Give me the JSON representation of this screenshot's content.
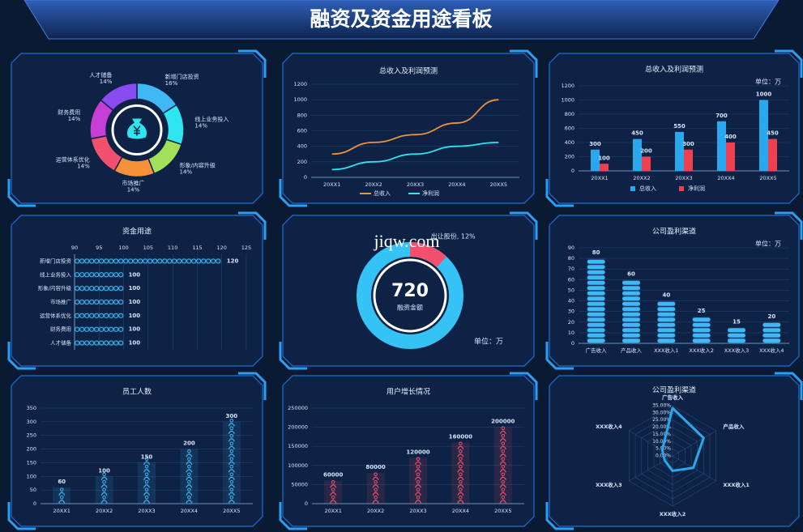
{
  "header": {
    "title": "融资及资金用途看板"
  },
  "chart_data": [
    {
      "type": "pie",
      "categories": [
        "新增门店投资",
        "线上业务投入",
        "形象/内容升级",
        "市场推广",
        "运营体系优化",
        "财务费用",
        "人才储备"
      ],
      "values": [
        16,
        14,
        14,
        14,
        14,
        14,
        14
      ],
      "value_labels": [
        "16%",
        "14%",
        "14%",
        "14%",
        "14%",
        "14%",
        "14%"
      ],
      "colors": [
        "#3fb8f5",
        "#2ee6f0",
        "#a3e05a",
        "#f7923a",
        "#f2506c",
        "#c53fd6",
        "#8a4cf0"
      ]
    },
    {
      "type": "line",
      "title": "总收入及利润预测",
      "categories": [
        "20XX1",
        "20XX2",
        "20XX3",
        "20XX4",
        "20XX5"
      ],
      "series": [
        {
          "name": "总收入",
          "color": "#f0913c",
          "values": [
            300,
            450,
            550,
            700,
            1000
          ]
        },
        {
          "name": "净利润",
          "color": "#2ee6f0",
          "values": [
            100,
            200,
            300,
            400,
            450
          ]
        }
      ],
      "ylim": [
        0,
        1200
      ],
      "yticks": [
        0,
        200,
        400,
        600,
        800,
        1000,
        1200
      ],
      "grid": true
    },
    {
      "type": "bar",
      "title": "总收入及利润预测",
      "unit": "单位：万",
      "categories": [
        "20XX1",
        "20XX2",
        "20XX3",
        "20XX4",
        "20XX5"
      ],
      "series": [
        {
          "name": "总收入",
          "color": "#29a8f0",
          "values": [
            300,
            450,
            550,
            700,
            1000
          ]
        },
        {
          "name": "净利润",
          "color": "#f0404e",
          "values": [
            100,
            200,
            300,
            400,
            450
          ]
        }
      ],
      "ylim": [
        0,
        1200
      ],
      "yticks": [
        0,
        200,
        400,
        600,
        800,
        1000,
        1200
      ],
      "grid": true,
      "data_labels": true
    },
    {
      "type": "hbar",
      "title": "资金用途",
      "categories": [
        "新增门店投资",
        "线上业务投入",
        "形象/内容升级",
        "市场推广",
        "运营体系优化",
        "财务费用",
        "人才储备"
      ],
      "values": [
        120,
        100,
        100,
        100,
        100,
        100,
        100
      ],
      "color": "#3fb8f5",
      "marker": "ring",
      "xlim": [
        90,
        125
      ],
      "xticks": [
        90,
        95,
        100,
        105,
        110,
        115,
        120,
        125
      ],
      "grid": true,
      "data_labels": true
    },
    {
      "type": "donut",
      "center_value": 720,
      "center_label": "融资金额",
      "unit": "单位：万",
      "categories": [
        "出让股份"
      ],
      "values": [
        12
      ],
      "value_labels": [
        "出让股份, 12%"
      ],
      "segment_color": "#f2506c",
      "color": "#35c3f5",
      "watermark": "jiqw.com"
    },
    {
      "type": "bar",
      "title": "公司盈利渠道",
      "unit": "单位：万",
      "categories": [
        "广告收入",
        "产品收入",
        "XXX收入1",
        "XXX收入2",
        "XXX收入3",
        "XXX收入4"
      ],
      "values": [
        80,
        60,
        40,
        25,
        15,
        20
      ],
      "color": "#3fb8f5",
      "marker": "pill",
      "ylim": [
        0,
        90
      ],
      "yticks": [
        0,
        10,
        20,
        30,
        40,
        50,
        60,
        70,
        80,
        90
      ],
      "grid": true,
      "data_labels": true
    },
    {
      "type": "bar",
      "title": "员工人数",
      "categories": [
        "20XX1",
        "20XX2",
        "20XX3",
        "20XX4",
        "20XX5"
      ],
      "values": [
        60,
        100,
        150,
        200,
        300
      ],
      "color": "#3fb8f5",
      "marker": "person",
      "ylim": [
        0,
        350
      ],
      "yticks": [
        0,
        50,
        100,
        150,
        200,
        250,
        300,
        350
      ],
      "grid": true,
      "data_labels": true
    },
    {
      "type": "bar",
      "title": "用户增长情况",
      "categories": [
        "20XX1",
        "20XX2",
        "20XX3",
        "20XX4",
        "20XX5"
      ],
      "values": [
        60000,
        80000,
        120000,
        160000,
        200000
      ],
      "color": "#f2506c",
      "marker": "person",
      "ylim": [
        0,
        250000
      ],
      "yticks": [
        0,
        50000,
        100000,
        150000,
        200000,
        250000
      ],
      "grid": true,
      "data_labels": true
    },
    {
      "type": "radar",
      "title": "公司盈利渠道",
      "categories": [
        "广告收入",
        "产品收入",
        "XXX收入1",
        "XXX收入2",
        "XXX收入3",
        "XXX收入4"
      ],
      "values": [
        33.3,
        25,
        16.7,
        10.4,
        6.3,
        8.3
      ],
      "color": "#29a8f0",
      "rlim": [
        0,
        35
      ],
      "rticks": [
        {
          "value": 0,
          "label": "0.00%"
        },
        {
          "value": 5,
          "label": "5.00%"
        },
        {
          "value": 10,
          "label": "10.00%"
        },
        {
          "value": 15,
          "label": "15.00%"
        },
        {
          "value": 20,
          "label": "20.00%"
        },
        {
          "value": 25,
          "label": "25.00%"
        },
        {
          "value": 30,
          "label": "30.00%"
        },
        {
          "value": 35,
          "label": "35.00%"
        }
      ]
    }
  ]
}
